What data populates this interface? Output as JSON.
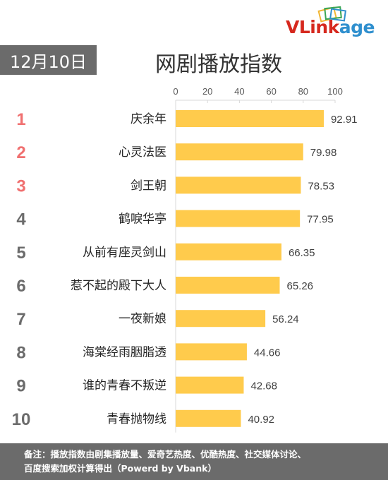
{
  "brand": {
    "logo_part1": "VLink",
    "logo_part2": "age",
    "primary_color": "#d6281e",
    "secondary_color": "#2f8fce"
  },
  "header": {
    "date": "12月10日",
    "title": "网剧播放指数"
  },
  "footer": {
    "line1": "备注：播放指数由剧集播放量、爱奇艺热度、优酷热度、社交媒体讨论、",
    "line2": "百度搜索加权计算得出（Powerd by Vbank）"
  },
  "chart_data": {
    "type": "bar",
    "orientation": "horizontal",
    "title": "网剧播放指数",
    "xlim": [
      0,
      100
    ],
    "xticks": [
      0,
      20,
      40,
      60,
      80,
      100
    ],
    "grid": false,
    "bar_color": "#ffcb4c",
    "rank_colors": {
      "top3": "#f07070",
      "rest": "#6b6b6b"
    },
    "ranks": [
      "1",
      "2",
      "3",
      "4",
      "5",
      "6",
      "7",
      "8",
      "9",
      "10"
    ],
    "categories": [
      "庆余年",
      "心灵法医",
      "剑王朝",
      "鹤唳华亭",
      "从前有座灵剑山",
      "惹不起的殿下大人",
      "一夜新娘",
      "海棠经雨胭脂透",
      "谁的青春不叛逆",
      "青春抛物线"
    ],
    "values": [
      92.91,
      79.98,
      78.53,
      77.95,
      66.35,
      65.26,
      56.24,
      44.66,
      42.68,
      40.92
    ],
    "value_labels": [
      "92.91",
      "79.98",
      "78.53",
      "77.95",
      "66.35",
      "65.26",
      "56.24",
      "44.66",
      "42.68",
      "40.92"
    ]
  }
}
